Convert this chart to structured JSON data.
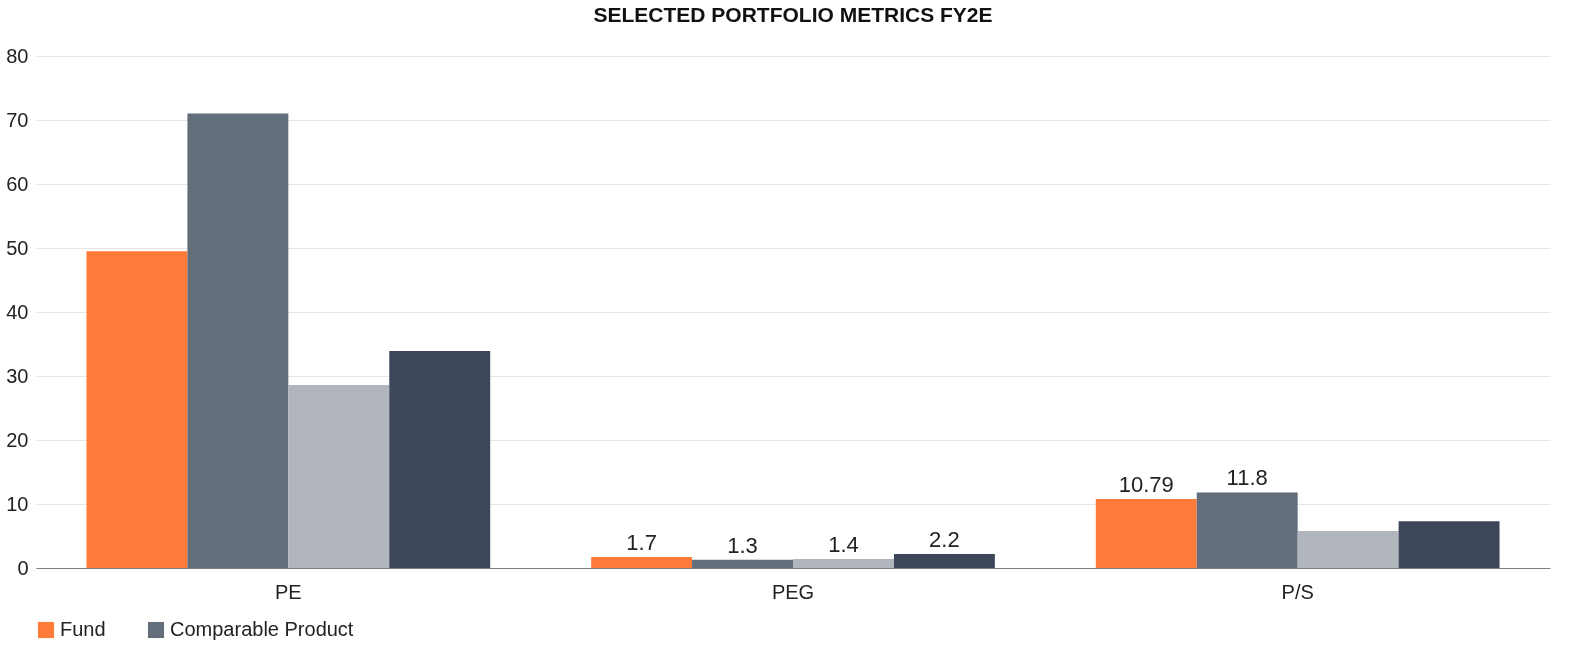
{
  "chart_data": {
    "type": "bar",
    "title": "SELECTED PORTFOLIO METRICS FY2E",
    "categories": [
      "PE",
      "PEG",
      "P/S"
    ],
    "series": [
      {
        "name": "Fund",
        "color": "#fe7b3a",
        "values": [
          49.5,
          1.7,
          10.79
        ],
        "value_labels": [
          null,
          "1.7",
          "10.79"
        ]
      },
      {
        "name": "Comparable Product",
        "color": "#636e7b",
        "values": [
          71,
          1.3,
          11.8
        ],
        "value_labels": [
          null,
          "1.3",
          "11.8"
        ]
      },
      {
        "color": "#b1b5bc",
        "values": [
          28.6,
          1.4,
          5.8
        ],
        "value_labels": [
          null,
          "1.4",
          null
        ]
      },
      {
        "color": "#3d4759",
        "values": [
          33.9,
          2.2,
          7.3
        ],
        "value_labels": [
          null,
          "2.2",
          null
        ]
      }
    ],
    "ylim": [
      0,
      80
    ],
    "yticks": [
      0,
      10,
      20,
      30,
      40,
      50,
      60,
      70,
      80
    ],
    "grid": "y",
    "legend": "bottom"
  }
}
